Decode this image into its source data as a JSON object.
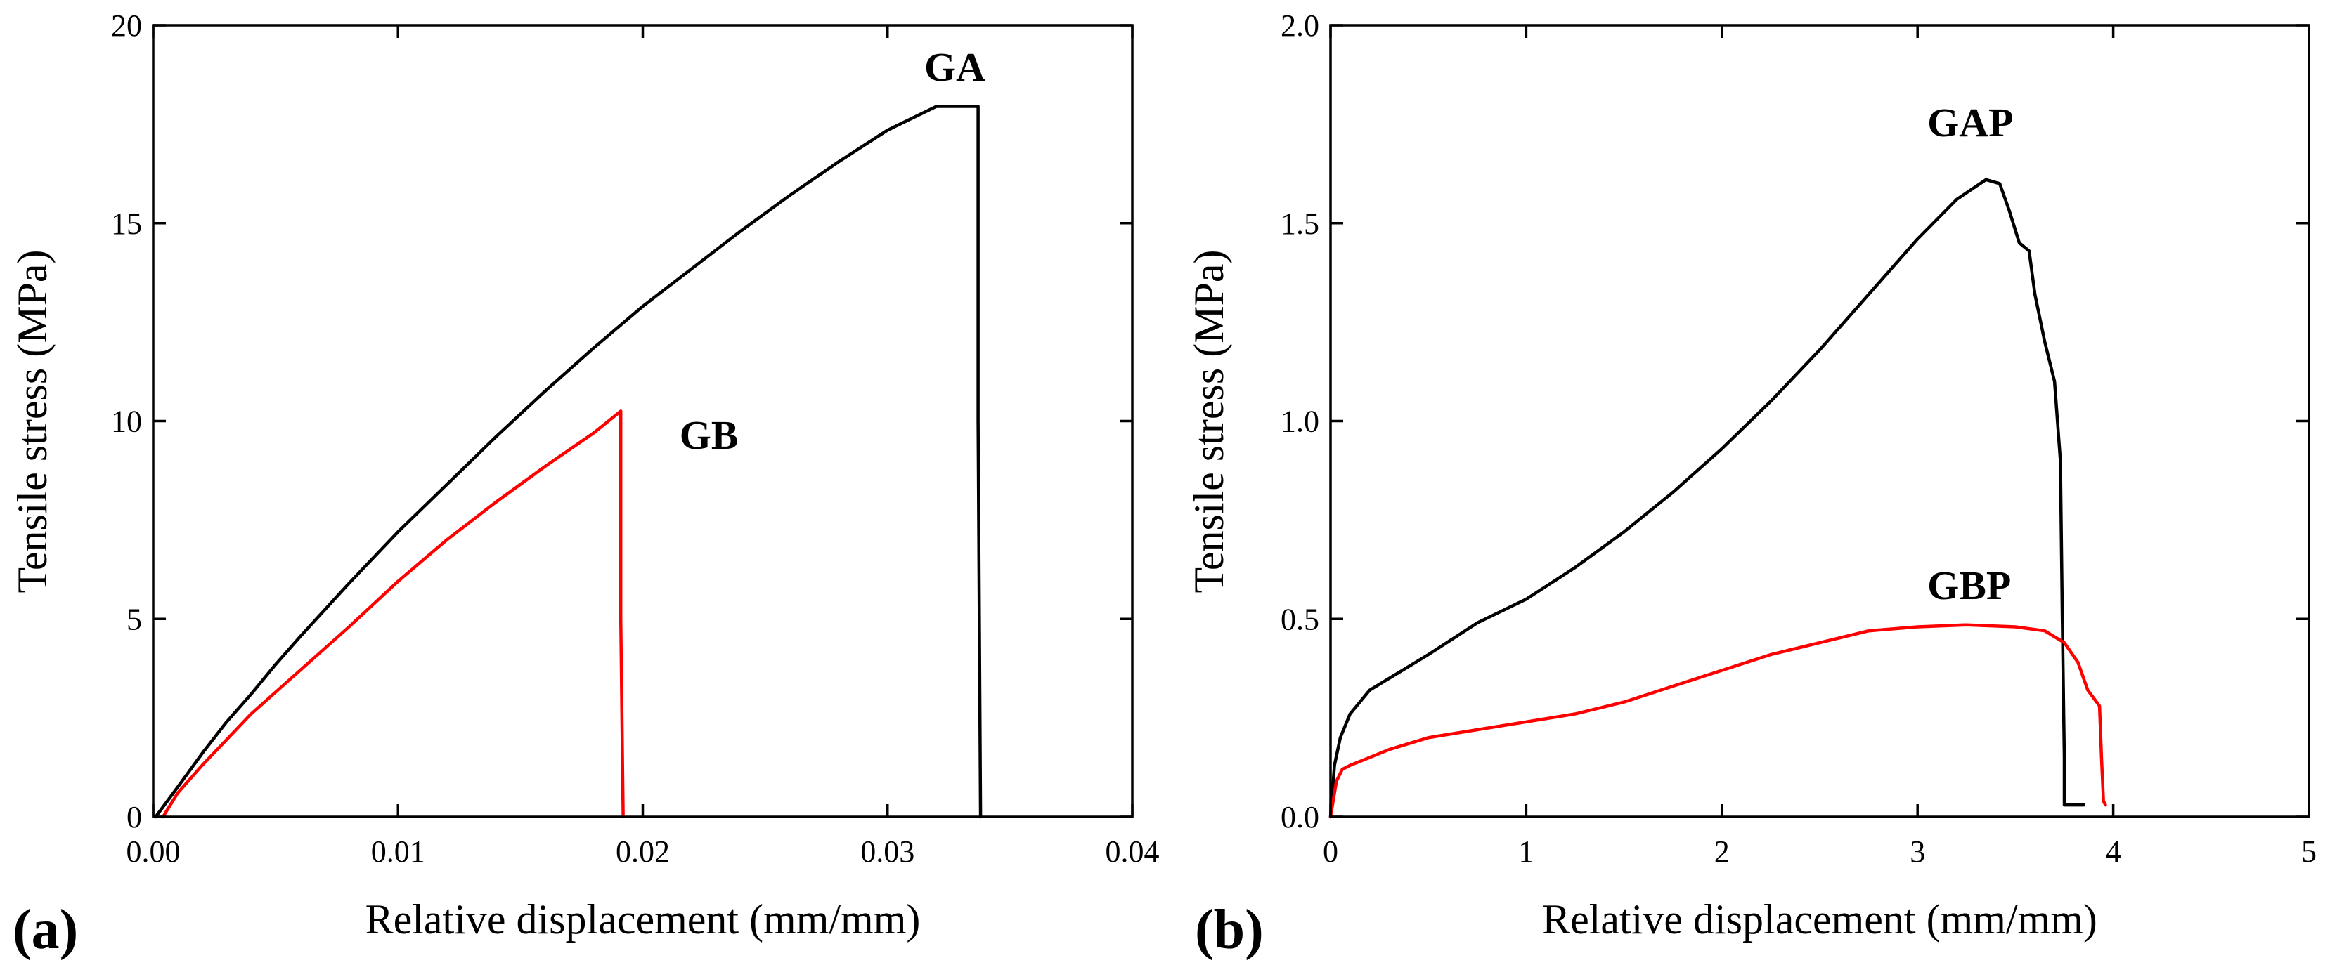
{
  "colors": {
    "series_black": "#000000",
    "series_red": "#ff0000"
  },
  "chart_data": [
    {
      "type": "line",
      "panel_label": "(a)",
      "title": "",
      "xlabel": "Relative displacement (mm/mm)",
      "ylabel": "Tensile stress (MPa)",
      "xlim": [
        0,
        0.04
      ],
      "ylim": [
        0,
        20
      ],
      "xticks": [
        0.0,
        0.01,
        0.02,
        0.03,
        0.04
      ],
      "xtick_labels": [
        "0.00",
        "0.01",
        "0.02",
        "0.03",
        "0.04"
      ],
      "yticks": [
        0,
        5,
        10,
        15,
        20
      ],
      "ytick_labels": [
        "0",
        "5",
        "10",
        "15",
        "20"
      ],
      "grid": false,
      "series": [
        {
          "name": "GA",
          "color": "#000000",
          "label_at": [
            0.0315,
            18.6
          ],
          "x": [
            0.0001,
            0.001,
            0.002,
            0.003,
            0.004,
            0.005,
            0.006,
            0.008,
            0.01,
            0.012,
            0.014,
            0.016,
            0.018,
            0.02,
            0.022,
            0.024,
            0.026,
            0.028,
            0.03,
            0.032,
            0.0337,
            0.0337,
            0.0338
          ],
          "y": [
            0,
            0.75,
            1.6,
            2.4,
            3.1,
            3.85,
            4.55,
            5.9,
            7.2,
            8.4,
            9.6,
            10.75,
            11.85,
            12.9,
            13.85,
            14.8,
            15.7,
            16.55,
            17.35,
            17.95,
            17.95,
            10,
            0
          ]
        },
        {
          "name": "GB",
          "color": "#ff0000",
          "label_at": [
            0.0215,
            9.3
          ],
          "x": [
            0.0004,
            0.001,
            0.002,
            0.003,
            0.004,
            0.005,
            0.006,
            0.008,
            0.01,
            0.012,
            0.014,
            0.016,
            0.018,
            0.0191,
            0.0191,
            0.0192
          ],
          "y": [
            0,
            0.6,
            1.3,
            1.95,
            2.6,
            3.15,
            3.7,
            4.8,
            5.95,
            7.0,
            7.95,
            8.85,
            9.7,
            10.25,
            5,
            0
          ]
        }
      ]
    },
    {
      "type": "line",
      "panel_label": "(b)",
      "title": "",
      "xlabel": "Relative displacement (mm/mm)",
      "ylabel": "Tensile stress (MPa)",
      "xlim": [
        0,
        5
      ],
      "ylim": [
        0,
        2.0
      ],
      "xticks": [
        0,
        1,
        2,
        3,
        4,
        5
      ],
      "xtick_labels": [
        "0",
        "1",
        "2",
        "3",
        "4",
        "5"
      ],
      "yticks": [
        0,
        0.5,
        1.0,
        1.5,
        2.0
      ],
      "ytick_labels": [
        "0.0",
        "0.5",
        "1.0",
        "1.5",
        "2.0"
      ],
      "grid": false,
      "series": [
        {
          "name": "GAP",
          "color": "#000000",
          "label_at": [
            3.05,
            1.72
          ],
          "x": [
            0.0,
            0.02,
            0.05,
            0.1,
            0.2,
            0.3,
            0.5,
            0.75,
            1.0,
            1.25,
            1.5,
            1.75,
            2.0,
            2.25,
            2.5,
            2.75,
            3.0,
            3.2,
            3.35,
            3.42,
            3.47,
            3.52,
            3.57,
            3.6,
            3.65,
            3.7,
            3.73,
            3.74,
            3.75,
            3.75,
            3.8,
            3.85
          ],
          "y": [
            0.0,
            0.13,
            0.2,
            0.26,
            0.32,
            0.35,
            0.41,
            0.49,
            0.55,
            0.63,
            0.72,
            0.82,
            0.93,
            1.05,
            1.18,
            1.32,
            1.46,
            1.56,
            1.61,
            1.6,
            1.53,
            1.45,
            1.43,
            1.32,
            1.2,
            1.1,
            0.9,
            0.5,
            0.15,
            0.03,
            0.03,
            0.03
          ]
        },
        {
          "name": "GBP",
          "color": "#ff0000",
          "label_at": [
            3.05,
            0.55
          ],
          "x": [
            0.0,
            0.03,
            0.06,
            0.1,
            0.2,
            0.3,
            0.5,
            0.75,
            1.0,
            1.25,
            1.5,
            1.75,
            2.0,
            2.25,
            2.5,
            2.75,
            3.0,
            3.25,
            3.5,
            3.65,
            3.75,
            3.82,
            3.87,
            3.9,
            3.93,
            3.94,
            3.95,
            3.96
          ],
          "y": [
            0.0,
            0.09,
            0.12,
            0.13,
            0.15,
            0.17,
            0.2,
            0.22,
            0.24,
            0.26,
            0.29,
            0.33,
            0.37,
            0.41,
            0.44,
            0.47,
            0.48,
            0.485,
            0.48,
            0.47,
            0.44,
            0.39,
            0.32,
            0.3,
            0.28,
            0.15,
            0.04,
            0.03
          ]
        }
      ]
    }
  ]
}
